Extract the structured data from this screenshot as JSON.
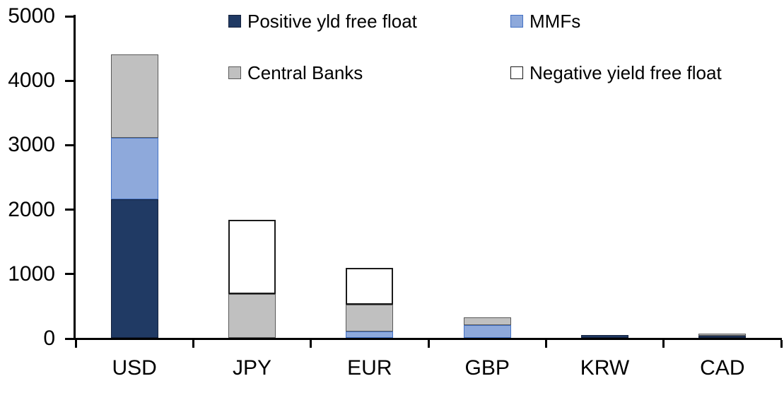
{
  "chart_data": {
    "type": "bar",
    "stacked": true,
    "title": "",
    "xlabel": "",
    "ylabel": "",
    "categories": [
      "USD",
      "JPY",
      "EUR",
      "GBP",
      "KRW",
      "CAD"
    ],
    "series": [
      {
        "name": "Positive yld free float",
        "color": "#203A64",
        "border": "#14213C",
        "values": [
          2150,
          0,
          0,
          0,
          40,
          35
        ]
      },
      {
        "name": "MMFs",
        "color": "#8EA9DB",
        "border": "#4472C4",
        "values": [
          950,
          0,
          100,
          200,
          0,
          0
        ]
      },
      {
        "name": "Central Banks",
        "color": "#C0C0C0",
        "border": "#595959",
        "values": [
          1300,
          680,
          420,
          120,
          0,
          35
        ]
      },
      {
        "name": "Negative yield free float",
        "color": "#FFFFFF",
        "border": "#1A1A1A",
        "values": [
          0,
          1150,
          570,
          0,
          0,
          0
        ]
      }
    ],
    "totals": [
      4400,
      1830,
      1090,
      320,
      40,
      70
    ],
    "ylim": [
      0,
      5000
    ],
    "y_ticks": [
      0,
      1000,
      2000,
      3000,
      4000,
      5000
    ],
    "grid": false,
    "legend_position": "top",
    "legend_layout": "2x2"
  },
  "colors": {
    "axis": "#000000",
    "text": "#000000",
    "background": "#FFFFFF"
  }
}
